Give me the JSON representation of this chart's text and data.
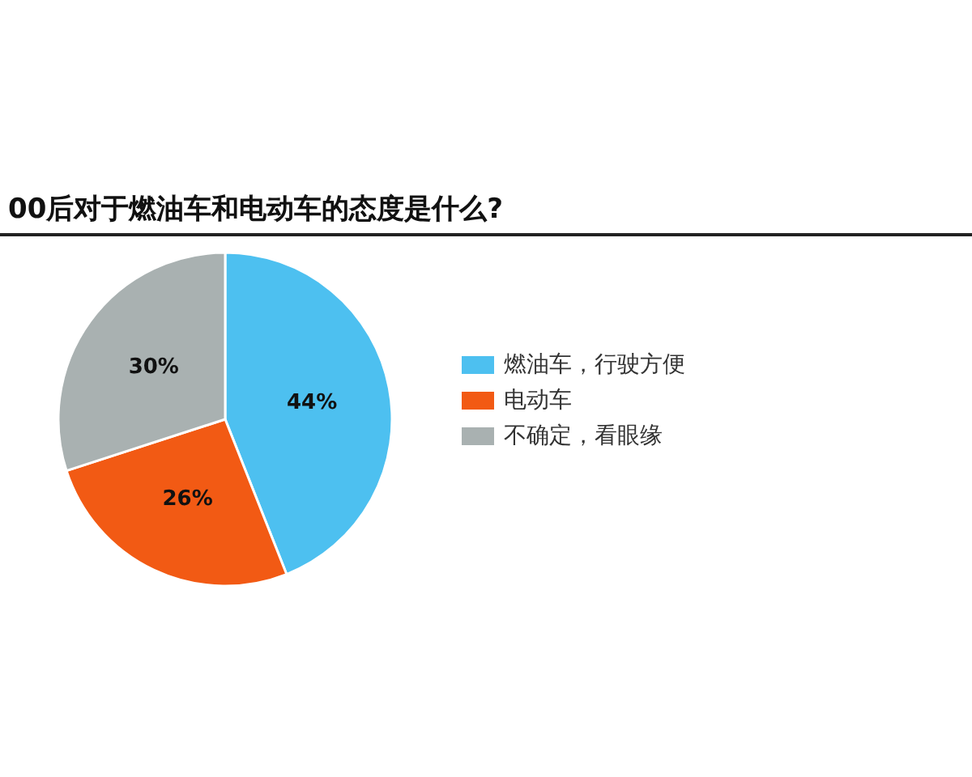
{
  "chart_data": {
    "type": "pie",
    "title": "00后对于燃油车和电动车的态度是什么?",
    "categories": [
      "燃油车，行驶方便",
      "电动车",
      "不确定，看眼缘"
    ],
    "values": [
      44,
      26,
      30
    ],
    "colors": [
      "#4dc0f0",
      "#f25a14",
      "#a9b1b1"
    ],
    "value_labels": [
      "44%",
      "26%",
      "30%"
    ],
    "legend": "right"
  }
}
